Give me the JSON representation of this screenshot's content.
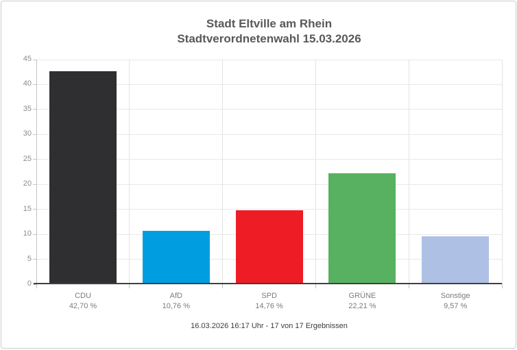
{
  "title": {
    "line1": "Stadt Eltville am Rhein",
    "line2": "Stadtverordnetenwahl 15.03.2026"
  },
  "footer": {
    "text": "16.03.2026 16:17 Uhr - 17 von 17 Ergebnissen"
  },
  "chart_data": {
    "type": "bar",
    "title": "Stadt Eltville am Rhein Stadtverordnetenwahl 15.03.2026",
    "categories": [
      "CDU",
      "AfD",
      "SPD",
      "GRÜNE",
      "Sonstige"
    ],
    "values": [
      42.7,
      10.76,
      14.76,
      22.21,
      9.57
    ],
    "value_labels": [
      "42,70 %",
      "10,76 %",
      "14,76 %",
      "22,21 %",
      "9,57 %"
    ],
    "bar_colors": [
      "#2f2e30",
      "#009ee0",
      "#ee1c25",
      "#57b161",
      "#aec0e4"
    ],
    "xlabel": "",
    "ylabel": "",
    "ylim": [
      0,
      45
    ],
    "ytick_step": 5,
    "grid": true,
    "legend_position": "none"
  },
  "colors": {
    "title_text": "#58585a",
    "axis_label_text": "#8a8a8a",
    "category_label_text": "#7b7b7b",
    "footer_text": "#3a3a3a",
    "gridline": "#e8e8e8",
    "axis_line": "#c3c3c3",
    "baseline": "#3f3f3f",
    "frame_border": "#cccccc",
    "background": "#ffffff"
  }
}
